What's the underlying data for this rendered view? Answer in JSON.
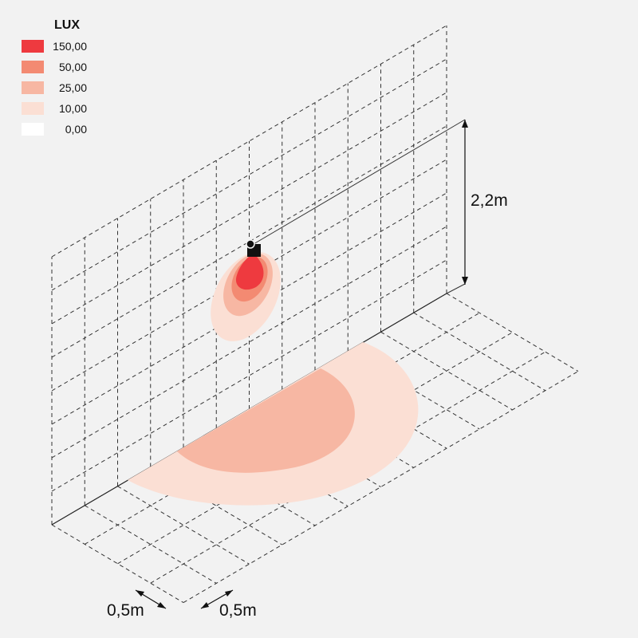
{
  "legend": {
    "title": "LUX",
    "entries": [
      {
        "label": "150,00",
        "color": "#ee3a3f"
      },
      {
        "label": "50,00",
        "color": "#f38a72"
      },
      {
        "label": "25,00",
        "color": "#f7b7a3"
      },
      {
        "label": "10,00",
        "color": "#fbdfd4"
      },
      {
        "label": "0,00",
        "color": "#ffffff"
      }
    ]
  },
  "dimensions": {
    "height": "2,2m",
    "grid_x": "0,5m",
    "grid_y": "0,5m"
  }
}
